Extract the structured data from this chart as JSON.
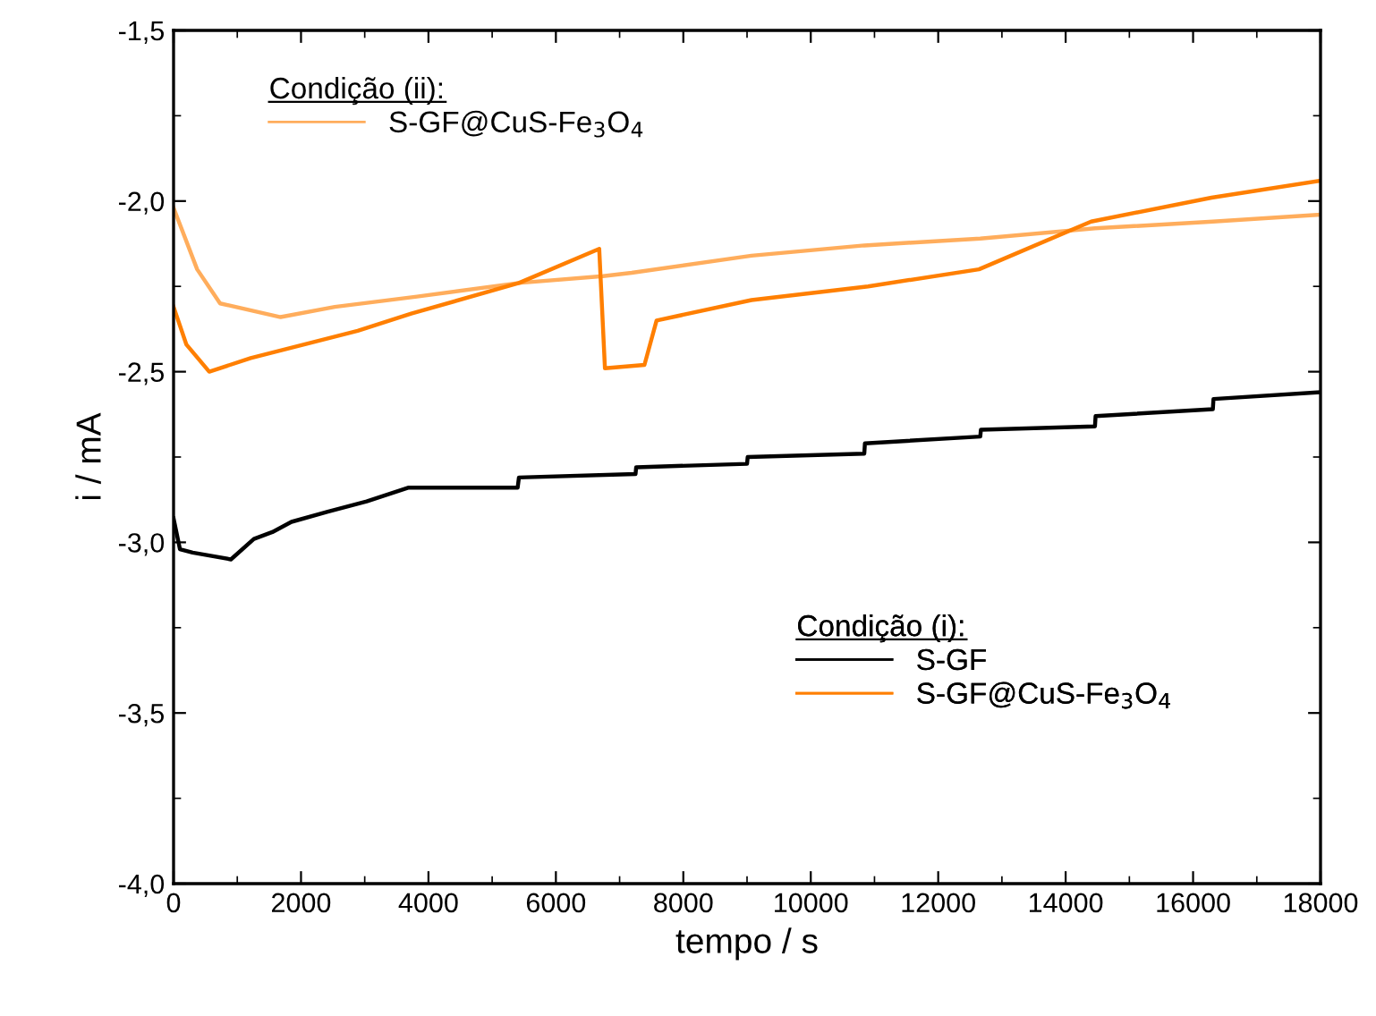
{
  "chart_data": {
    "type": "line",
    "xlabel": "tempo / s",
    "ylabel": "i / mA",
    "legend_title": [
      "Condição (ii):",
      "Condição (i):"
    ],
    "legend": [
      "top left",
      "center right"
    ],
    "xlim": [
      0,
      18000
    ],
    "xticks": [
      0,
      2000,
      4000,
      6000,
      8000,
      10000,
      12000,
      14000,
      16000,
      18000
    ],
    "ylim": [
      -4.0,
      -1.5
    ],
    "yticks": [
      {
        "value": -4.0,
        "label": "-4,0"
      },
      {
        "value": -3.5,
        "label": "-3,5"
      },
      {
        "value": -3.0,
        "label": "-3,0"
      },
      {
        "value": -2.5,
        "label": "-2,5"
      },
      {
        "value": -2.0,
        "label": "-2,0"
      },
      {
        "value": -1.5,
        "label": "-1,5"
      }
    ],
    "grid": false,
    "series": [
      {
        "name": "S-GF@CuS-Fe$_{3}$O$_{4}$",
        "color": "#ffad5c",
        "x": [
          0,
          370,
          730,
          1680,
          2530,
          3820,
          5420,
          6740,
          7190,
          9070,
          10840,
          12660,
          14460,
          16310,
          18000
        ],
        "values": [
          -2.02,
          -2.2,
          -2.3,
          -2.34,
          -2.31,
          -2.28,
          -2.24,
          -2.22,
          -2.21,
          -2.16,
          -2.13,
          -2.11,
          -2.08,
          -2.06,
          -2.04
        ]
      },
      {
        "name": "S-GF",
        "color": "#000000",
        "x": [
          0,
          100,
          300,
          900,
          1260,
          1550,
          1850,
          2420,
          3030,
          3680,
          5400,
          5420,
          7250,
          7260,
          9000,
          9010,
          10840,
          10850,
          12660,
          12670,
          14460,
          14470,
          16310,
          16320,
          18000
        ],
        "values": [
          -2.93,
          -3.02,
          -3.03,
          -3.05,
          -2.99,
          -2.97,
          -2.94,
          -2.91,
          -2.88,
          -2.84,
          -2.84,
          -2.81,
          -2.8,
          -2.78,
          -2.77,
          -2.75,
          -2.74,
          -2.71,
          -2.69,
          -2.67,
          -2.66,
          -2.63,
          -2.61,
          -2.58,
          -2.56
        ]
      },
      {
        "name": "S-GF@CuS-Fe$_{3}$O$_{4}$",
        "color": "#ff7f00",
        "x": [
          0,
          200,
          560,
          1210,
          2890,
          3730,
          5420,
          6680,
          6770,
          7390,
          7580,
          9070,
          10900,
          12640,
          14400,
          16290,
          18000
        ],
        "values": [
          -2.31,
          -2.42,
          -2.5,
          -2.46,
          -2.38,
          -2.33,
          -2.24,
          -2.14,
          -2.49,
          -2.48,
          -2.35,
          -2.29,
          -2.25,
          -2.2,
          -2.06,
          -1.99,
          -1.94
        ]
      }
    ]
  }
}
